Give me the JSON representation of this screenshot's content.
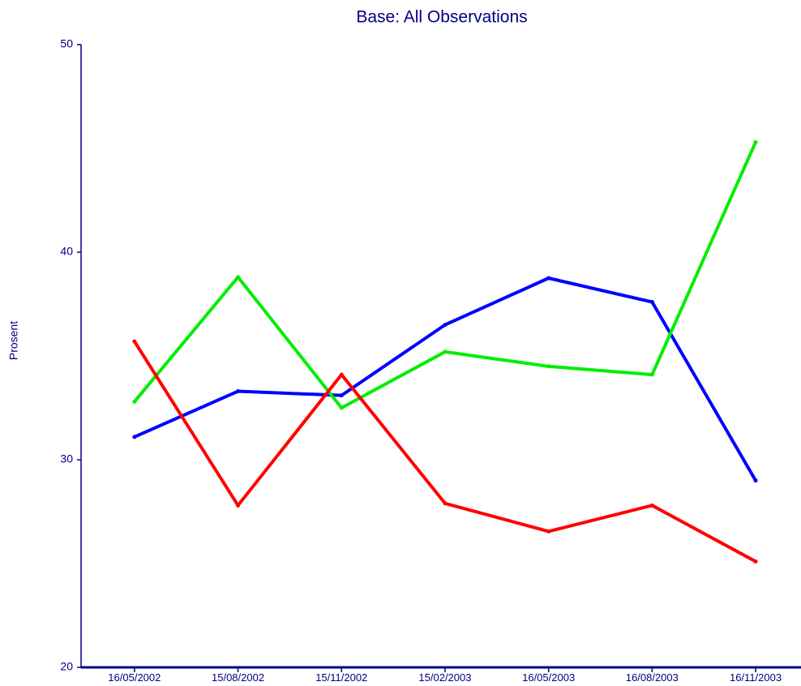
{
  "chart_data": {
    "type": "line",
    "title": "Base:  All Observations",
    "y_label": "Prosent",
    "categories": [
      "16/05/2002",
      "15/08/2002",
      "15/11/2002",
      "15/02/2003",
      "16/05/2003",
      "16/08/2003",
      "16/11/2003"
    ],
    "series": [
      {
        "color": "#0000ff",
        "values": [
          31.1,
          33.3,
          33.1,
          36.5,
          38.75,
          37.6,
          29.0
        ]
      },
      {
        "color": "#00ee00",
        "values": [
          32.8,
          38.8,
          32.5,
          35.2,
          34.5,
          34.1,
          45.3
        ]
      },
      {
        "color": "#ff0000",
        "values": [
          35.7,
          27.8,
          34.1,
          27.9,
          26.55,
          27.8,
          25.1
        ]
      }
    ],
    "ylim": [
      20,
      50
    ],
    "yticks": [
      20,
      30,
      40,
      50
    ],
    "grid": false
  }
}
